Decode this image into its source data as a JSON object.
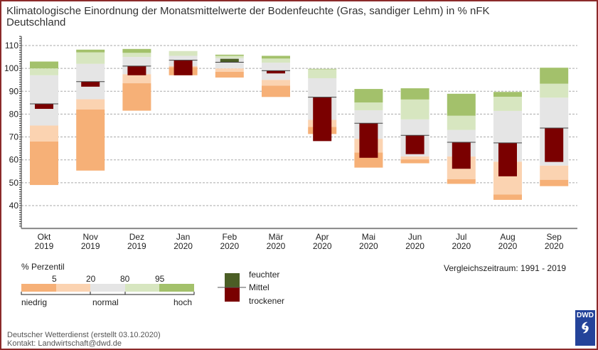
{
  "title": {
    "line1": "Klimatologische Einordnung der Monatsmittelwerte der Bodenfeuchte (Gras, sandiger Lehm) in % nFK",
    "line2": "Deutschland"
  },
  "chart_data": {
    "type": "floating-bar",
    "title": "Klimatologische Einordnung der Monatsmittelwerte der Bodenfeuchte (Gras, sandiger Lehm) in % nFK",
    "subtitle": "Deutschland",
    "ylim": [
      30,
      115
    ],
    "yticks": [
      40,
      50,
      60,
      70,
      80,
      90,
      100,
      110
    ],
    "grid": true,
    "categories": [
      {
        "month": "Okt",
        "year": "2019"
      },
      {
        "month": "Nov",
        "year": "2019"
      },
      {
        "month": "Dez",
        "year": "2019"
      },
      {
        "month": "Jan",
        "year": "2020"
      },
      {
        "month": "Feb",
        "year": "2020"
      },
      {
        "month": "Mär",
        "year": "2020"
      },
      {
        "month": "Apr",
        "year": "2020"
      },
      {
        "month": "Mai",
        "year": "2020"
      },
      {
        "month": "Jun",
        "year": "2020"
      },
      {
        "month": "Jul",
        "year": "2020"
      },
      {
        "month": "Aug",
        "year": "2020"
      },
      {
        "month": "Sep",
        "year": "2020"
      }
    ],
    "series": {
      "min": [
        49,
        55.3,
        81.5,
        97,
        96,
        87.5,
        71.3,
        56.6,
        58.5,
        49.5,
        42.5,
        48.5
      ],
      "p5": [
        68,
        82,
        93.5,
        100.5,
        98.5,
        92.5,
        74.4,
        63.2,
        60.2,
        51.6,
        44.9,
        51.3
      ],
      "p20": [
        75,
        86.5,
        97.5,
        101,
        100,
        95,
        77.5,
        69.2,
        61.5,
        61.5,
        59.2,
        57.5
      ],
      "p80": [
        97,
        102,
        105,
        105.5,
        104.5,
        102.5,
        95.7,
        81.7,
        77.7,
        73.1,
        81.4,
        87.2
      ],
      "p95": [
        100,
        107,
        106.8,
        107.6,
        105.5,
        104.3,
        99.6,
        85.1,
        86.4,
        79.3,
        87.6,
        93.3
      ],
      "max": [
        103,
        108.2,
        108.5,
        107.6,
        106,
        105.5,
        99.8,
        91,
        91.3,
        88.9,
        89.7,
        100.3
      ],
      "mean": [
        84.5,
        94.2,
        101,
        103.6,
        102.7,
        99,
        87.4,
        76,
        70.7,
        67.7,
        67.4,
        73.9
      ],
      "current": [
        82.3,
        92,
        97,
        97,
        104.2,
        97.8,
        68.2,
        60.9,
        62.5,
        56.1,
        52.8,
        59.1
      ]
    },
    "colors": {
      "below_p5": "#f6b077",
      "p5_p20": "#fbd3b1",
      "p20_p80": "#e5e5e5",
      "p80_p95": "#d7e6c0",
      "above_p95": "#a3c16b",
      "wetter": "#4b5e25",
      "drier": "#7a0000"
    }
  },
  "legend": {
    "percentile_title": "% Perzentil",
    "ticks": [
      "5",
      "20",
      "80",
      "95"
    ],
    "low": "niedrig",
    "normal": "normal",
    "high": "hoch",
    "wetter": "feuchter",
    "mean": "Mittel",
    "drier": "trockener"
  },
  "period": "Vergleichszeitraum: 1991 - 2019",
  "footer": {
    "line1": "Deutscher Wetterdienst (erstellt 03.10.2020)",
    "line2": "Kontakt: Landwirtschaft@dwd.de"
  },
  "logo": {
    "text": "DWD"
  }
}
